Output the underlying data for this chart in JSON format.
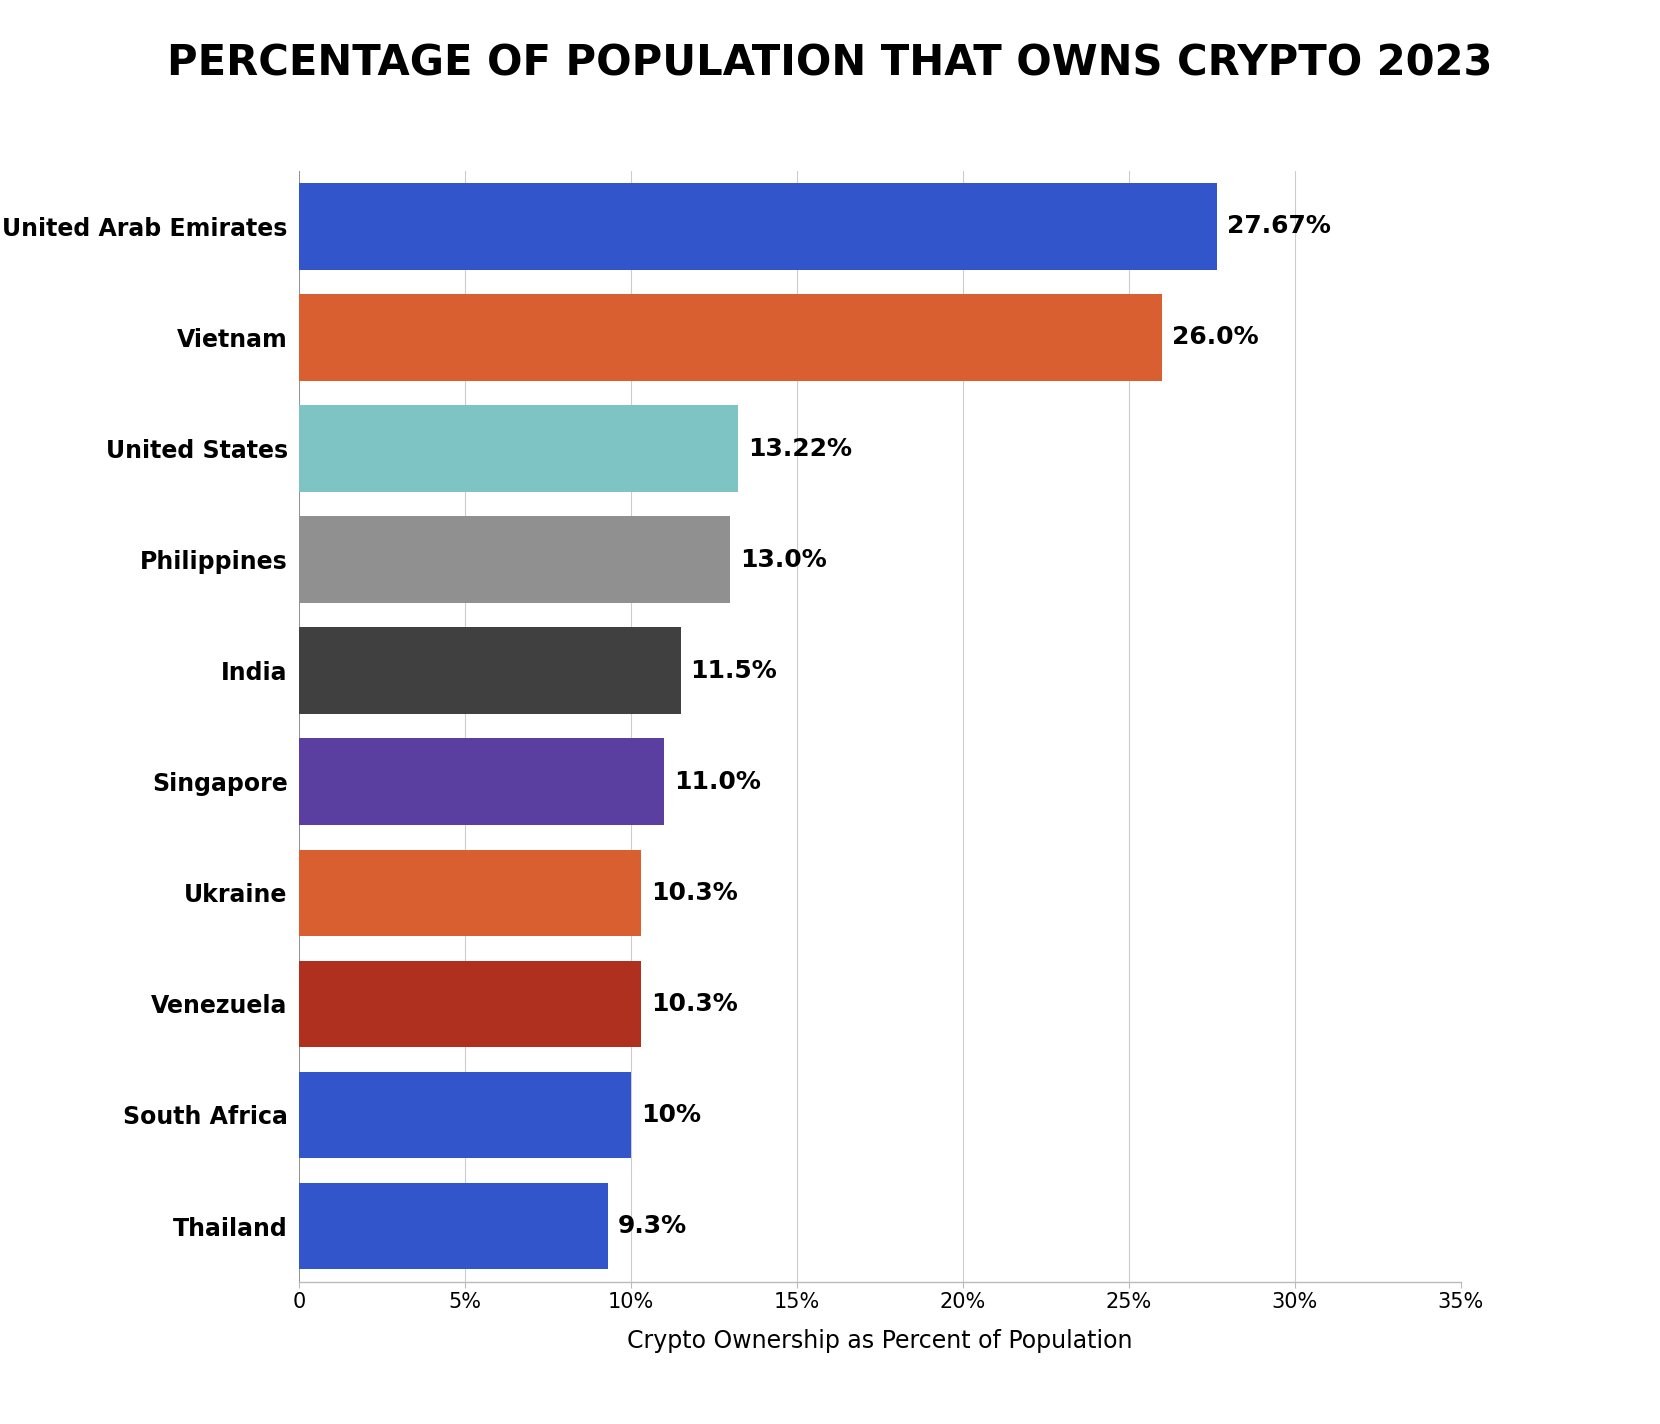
{
  "title": "PERCENTAGE OF POPULATION THAT OWNS CRYPTO 2023",
  "xlabel": "Crypto Ownership as Percent of Population",
  "categories": [
    "Thailand",
    "South Africa",
    "Venezuela",
    "Ukraine",
    "Singapore",
    "India",
    "Philippines",
    "United States",
    "Vietnam",
    "United Arab Emirates"
  ],
  "values": [
    9.3,
    10.0,
    10.3,
    10.3,
    11.0,
    11.5,
    13.0,
    13.22,
    26.0,
    27.67
  ],
  "labels": [
    "9.3%",
    "10%",
    "10.3%",
    "10.3%",
    "11.0%",
    "11.5%",
    "13.0%",
    "13.22%",
    "26.0%",
    "27.67%"
  ],
  "colors": [
    "#3355cc",
    "#3355cc",
    "#b03020",
    "#d95f30",
    "#5b3fa0",
    "#404040",
    "#909090",
    "#7fc4c4",
    "#d95f30",
    "#3355cc"
  ],
  "xlim": [
    0,
    35
  ],
  "xtick_values": [
    0,
    5,
    10,
    15,
    20,
    25,
    30,
    35
  ],
  "xtick_labels": [
    "0",
    "5%",
    "10%",
    "15%",
    "20%",
    "25%",
    "30%",
    "35%"
  ],
  "background_color": "#ffffff",
  "title_fontsize": 30,
  "label_fontsize": 17,
  "tick_fontsize": 15,
  "bar_height": 0.78,
  "value_label_fontsize": 18,
  "ytick_fontsize": 17
}
